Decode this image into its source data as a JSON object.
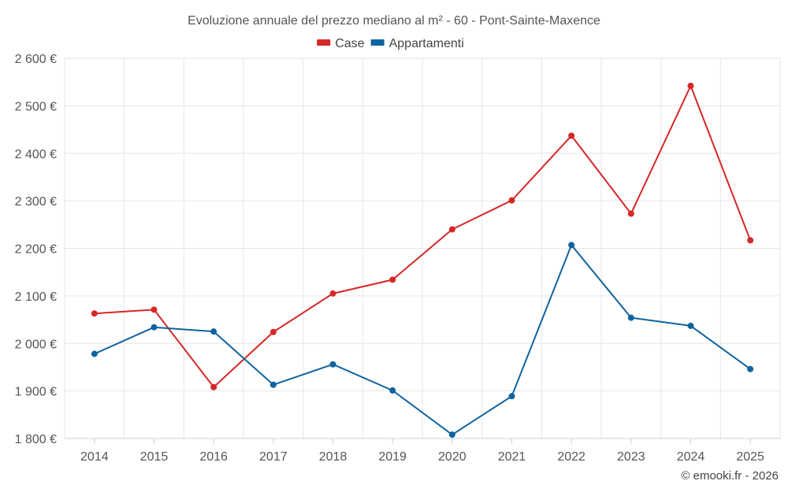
{
  "chart_data": {
    "type": "line",
    "title": "Evoluzione annuale del prezzo mediano al m² - 60 - Pont-Sainte-Maxence",
    "categories": [
      "2014",
      "2015",
      "2016",
      "2017",
      "2018",
      "2019",
      "2020",
      "2021",
      "2022",
      "2023",
      "2024",
      "2025"
    ],
    "series": [
      {
        "name": "Case",
        "color": "#d62728",
        "values": [
          2063,
          2071,
          1908,
          2024,
          2105,
          2134,
          2240,
          2301,
          2437,
          2273,
          2542,
          2217
        ]
      },
      {
        "name": "Appartamenti",
        "color": "#0f63a0",
        "values": [
          1978,
          2034,
          2025,
          1913,
          1956,
          1901,
          1808,
          1889,
          2207,
          2054,
          2037,
          1946
        ]
      }
    ],
    "ylim": [
      1800,
      2600
    ],
    "yticks": [
      1800,
      1900,
      2000,
      2100,
      2200,
      2300,
      2400,
      2500,
      2600
    ],
    "ytick_labels": [
      "1 800 €",
      "1 900 €",
      "2 000 €",
      "2 100 €",
      "2 200 €",
      "2 300 €",
      "2 400 €",
      "2 500 €",
      "2 600 €"
    ],
    "xlabel": "",
    "ylabel": "",
    "grid": true,
    "legend_position": "top-center"
  },
  "credit": "© emooki.fr - 2026"
}
